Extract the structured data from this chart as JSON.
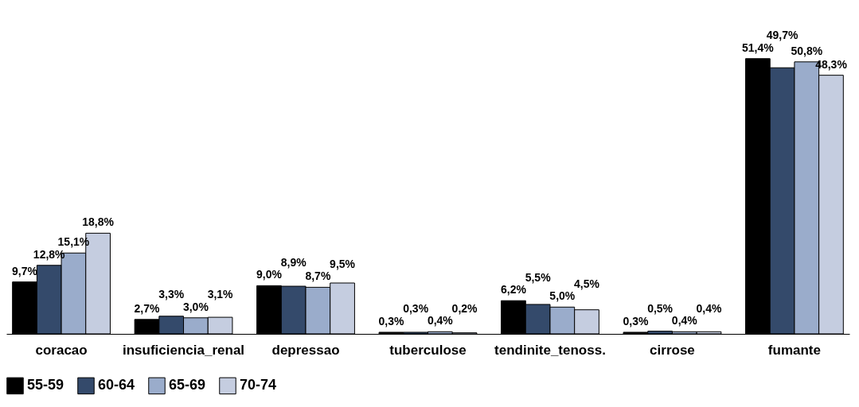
{
  "chart_data": {
    "type": "bar",
    "categories": [
      "coracao",
      "insuficiencia_renal",
      "depressao",
      "tuberculose",
      "tendinite_tenoss.",
      "cirrose",
      "fumante"
    ],
    "series": [
      {
        "name": "55-59",
        "color": "#000000",
        "values": [
          9.7,
          2.7,
          9.0,
          0.3,
          6.2,
          0.3,
          51.4
        ],
        "value_labels": [
          "9,7%",
          "2,7%",
          "9,0%",
          "0,3%",
          "6,2%",
          "0,3%",
          "51,4%"
        ]
      },
      {
        "name": "60-64",
        "color": "#344a6b",
        "values": [
          12.8,
          3.3,
          8.9,
          0.3,
          5.5,
          0.5,
          49.7
        ],
        "value_labels": [
          "12,8%",
          "3,3%",
          "8,9%",
          "0,3%",
          "5,5%",
          "0,5%",
          "49,7%"
        ]
      },
      {
        "name": "65-69",
        "color": "#9aaccb",
        "values": [
          15.1,
          3.0,
          8.7,
          0.4,
          5.0,
          0.4,
          50.8
        ],
        "value_labels": [
          "15,1%",
          "3,0%",
          "8,7%",
          "0,4%",
          "5,0%",
          "0,4%",
          "50,8%"
        ]
      },
      {
        "name": "70-74",
        "color": "#c5cde0",
        "values": [
          18.8,
          3.1,
          9.5,
          0.2,
          4.5,
          0.4,
          48.3
        ],
        "value_labels": [
          "18,8%",
          "3,1%",
          "9,5%",
          "0,2%",
          "4,5%",
          "0,4%",
          "48,3%"
        ]
      }
    ],
    "grid": false,
    "legend": "bottom"
  }
}
